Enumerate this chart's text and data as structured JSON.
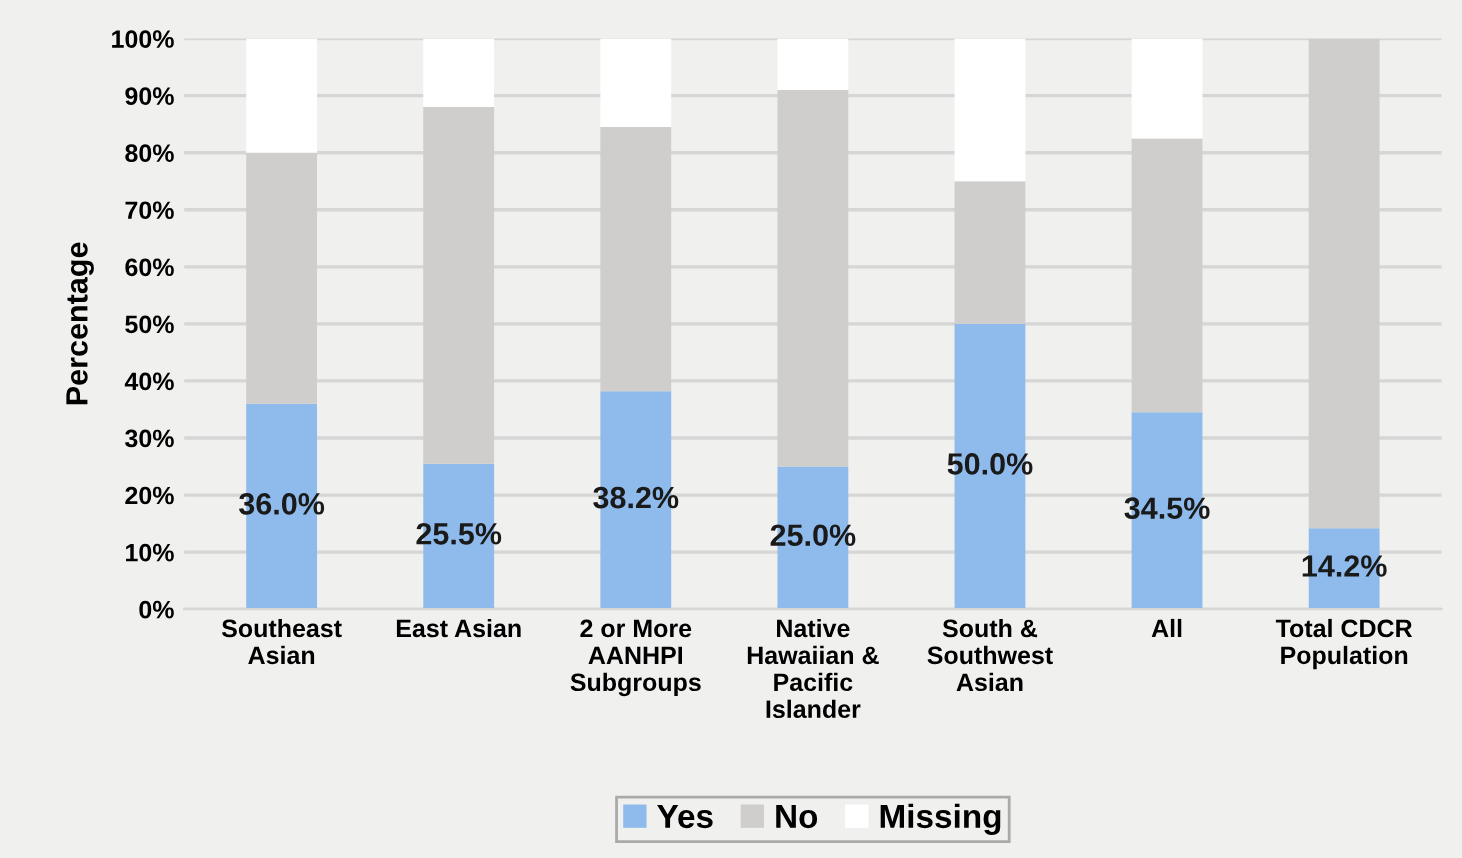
{
  "chart_data": {
    "type": "bar",
    "stacked": true,
    "ylabel": "Percentage",
    "categories": [
      "Southeast\nAsian",
      "East Asian",
      "2 or More\nAANHPI\nSubgroups",
      "Native\nHawaiian &\nPacific\nIslander",
      "South &\nSouthwest\nAsian",
      "All",
      "Total CDCR\nPopulation"
    ],
    "series": [
      {
        "name": "Yes",
        "color": "#8fbbec",
        "values": [
          36.0,
          25.5,
          38.2,
          25.0,
          50.0,
          34.5,
          14.2
        ],
        "value_labels": [
          "36.0%",
          "25.5%",
          "38.2%",
          "25.0%",
          "50.0%",
          "34.5%",
          "14.2%"
        ]
      },
      {
        "name": "No",
        "color": "#d0cecc",
        "values": [
          44.0,
          62.5,
          46.3,
          66.0,
          25.0,
          48.0,
          85.8
        ]
      },
      {
        "name": "Missing",
        "color": "#ffffff",
        "values": [
          20.0,
          12.0,
          15.5,
          9.0,
          25.0,
          17.5,
          0.0
        ]
      }
    ],
    "ylim": [
      0,
      100
    ],
    "yticks": [
      {
        "value": 0,
        "label": "0%"
      },
      {
        "value": 10,
        "label": "10%"
      },
      {
        "value": 20,
        "label": "20%"
      },
      {
        "value": 30,
        "label": "30%"
      },
      {
        "value": 40,
        "label": "40%"
      },
      {
        "value": 50,
        "label": "50%"
      },
      {
        "value": 60,
        "label": "60%"
      },
      {
        "value": 70,
        "label": "70%"
      },
      {
        "value": 80,
        "label": "80%"
      },
      {
        "value": 90,
        "label": "90%"
      },
      {
        "value": 100,
        "label": "100%"
      }
    ],
    "grid": "y",
    "legend": "bottom"
  }
}
